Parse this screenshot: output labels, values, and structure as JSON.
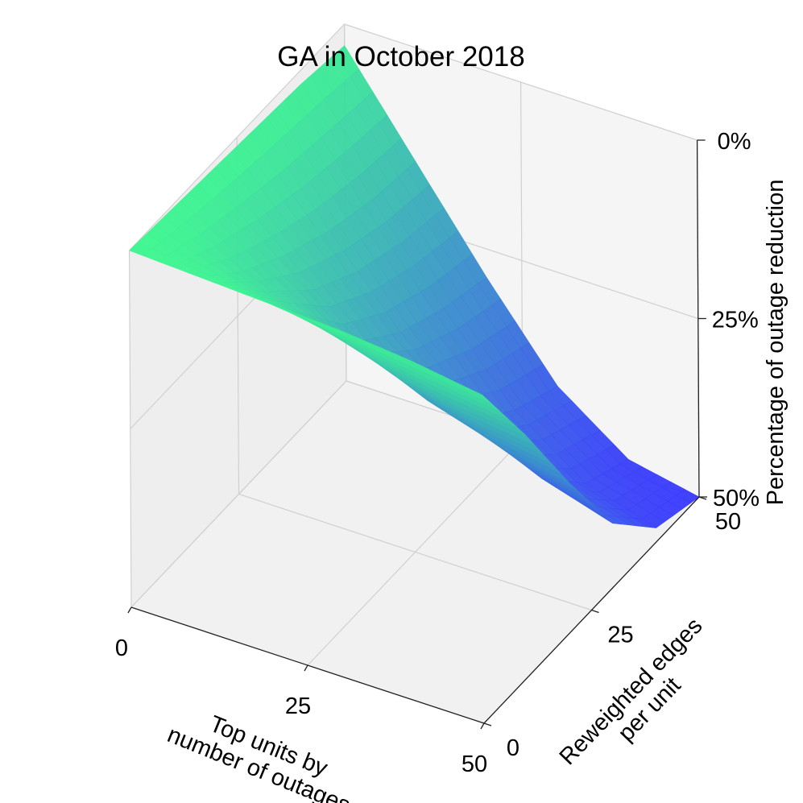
{
  "colors": {
    "surface_top": "#3cf78f",
    "surface_bottom": "#3a38ff",
    "pane_floor": "#f1f1f1",
    "pane_back": "#f5f5f5",
    "pane_side": "#eeeeee",
    "grid": "#d0d0d0"
  },
  "chart_data": {
    "type": "surface3d",
    "title": "GA in October 2018",
    "xlabel": "Top units by\nnumber of outages",
    "ylabel": "Reweighted edges\nper unit",
    "zlabel": "Percentage of outage reduction",
    "x_ticks": [
      "0",
      "25",
      "50"
    ],
    "y_ticks": [
      "0",
      "25",
      "50"
    ],
    "z_ticks": [
      "0%",
      "25%",
      "50%"
    ],
    "xlim": [
      0,
      50
    ],
    "ylim": [
      0,
      50
    ],
    "zlim": [
      0,
      50
    ],
    "z_axis_inverted": true,
    "z_unit": "percent reduction",
    "corner_values": {
      "x0_y0": 0,
      "x50_y0": 4,
      "x0_y50": 3,
      "x50_y50": 50
    },
    "x_grid": [
      0,
      10,
      20,
      30,
      40,
      50
    ],
    "y_grid": [
      0,
      10,
      20,
      30,
      40,
      50
    ],
    "z_values": [
      [
        0,
        0.5,
        1,
        1.5,
        2,
        3
      ],
      [
        0.5,
        6,
        10,
        13,
        15,
        16
      ],
      [
        1,
        10,
        19,
        24,
        27,
        29
      ],
      [
        1.5,
        13,
        24,
        33,
        38,
        41
      ],
      [
        2.5,
        15,
        27,
        38,
        45,
        48
      ],
      [
        4,
        16,
        29,
        41,
        48,
        50
      ]
    ],
    "colormap": "winter_r",
    "grid": true
  }
}
